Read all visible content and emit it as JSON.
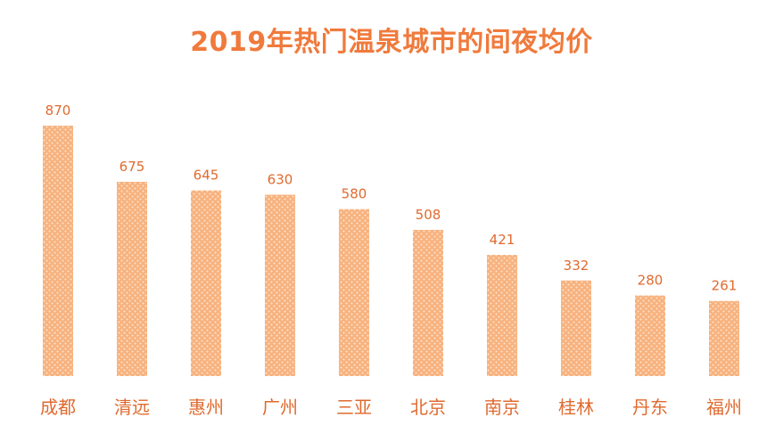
{
  "chart_data": {
    "type": "bar",
    "title": "2019年热门温泉城市的间夜均价",
    "categories": [
      "成都",
      "清远",
      "惠州",
      "广州",
      "三亚",
      "北京",
      "南京",
      "桂林",
      "丹东",
      "福州"
    ],
    "values": [
      870,
      675,
      645,
      630,
      580,
      508,
      421,
      332,
      280,
      261
    ],
    "xlabel": "",
    "ylabel": "",
    "ylim": [
      0,
      870
    ],
    "grid": false,
    "legend": "none",
    "bar_color": "#f7b27e",
    "bar_dot_color": "#fde4cf",
    "text_color": "#e06a2f",
    "title_color": "#f07a3c"
  }
}
